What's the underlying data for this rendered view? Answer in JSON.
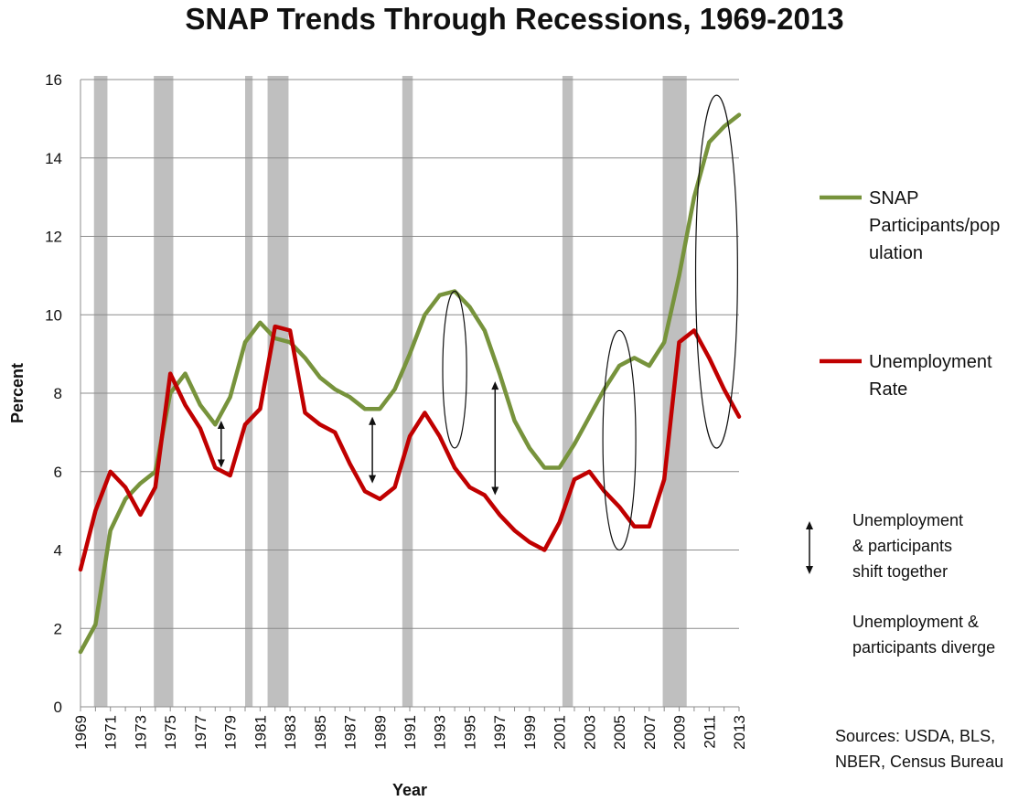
{
  "chart_data": {
    "type": "line",
    "title": "SNAP Trends Through Recessions, 1969-2013",
    "xlabel": "Year",
    "ylabel": "Percent",
    "ylim": [
      0,
      16
    ],
    "yticks": [
      0,
      2,
      4,
      6,
      8,
      10,
      12,
      14,
      16
    ],
    "xlim": [
      1969,
      2013
    ],
    "xtick_labels": [
      "1969",
      "1971",
      "1973",
      "1975",
      "1977",
      "1979",
      "1981",
      "1983",
      "1985",
      "1987",
      "1989",
      "1991",
      "1993",
      "1995",
      "1997",
      "1999",
      "2001",
      "2003",
      "2005",
      "2007",
      "2009",
      "2011",
      "2013"
    ],
    "grid": "horizontal",
    "legend_position": "right",
    "x": [
      1969,
      1970,
      1971,
      1972,
      1973,
      1974,
      1975,
      1976,
      1977,
      1978,
      1979,
      1980,
      1981,
      1982,
      1983,
      1984,
      1985,
      1986,
      1987,
      1988,
      1989,
      1990,
      1991,
      1992,
      1993,
      1994,
      1995,
      1996,
      1997,
      1998,
      1999,
      2000,
      2001,
      2002,
      2003,
      2004,
      2005,
      2006,
      2007,
      2008,
      2009,
      2010,
      2011,
      2012,
      2013
    ],
    "series": [
      {
        "name": "SNAP Participants/population",
        "color": "#77933c",
        "values": [
          1.4,
          2.1,
          4.5,
          5.3,
          5.7,
          6.0,
          8.0,
          8.5,
          7.7,
          7.2,
          7.9,
          9.3,
          9.8,
          9.4,
          9.3,
          8.9,
          8.4,
          8.1,
          7.9,
          7.6,
          7.6,
          8.1,
          9.0,
          10.0,
          10.5,
          10.6,
          10.2,
          9.6,
          8.5,
          7.3,
          6.6,
          6.1,
          6.1,
          6.7,
          7.4,
          8.1,
          8.7,
          8.9,
          8.7,
          9.3,
          11.0,
          13.0,
          14.4,
          14.8,
          15.1
        ]
      },
      {
        "name": "Unemployment Rate",
        "color": "#c00000",
        "values": [
          3.5,
          5.0,
          6.0,
          5.6,
          4.9,
          5.6,
          8.5,
          7.7,
          7.1,
          6.1,
          5.9,
          7.2,
          7.6,
          9.7,
          9.6,
          7.5,
          7.2,
          7.0,
          6.2,
          5.5,
          5.3,
          5.6,
          6.9,
          7.5,
          6.9,
          6.1,
          5.6,
          5.4,
          4.9,
          4.5,
          4.2,
          4.0,
          4.7,
          5.8,
          6.0,
          5.5,
          5.1,
          4.6,
          4.6,
          5.8,
          9.3,
          9.6,
          8.9,
          8.1,
          7.4
        ]
      }
    ],
    "recessions": [
      [
        1969.9,
        1970.8
      ],
      [
        1973.9,
        1975.2
      ],
      [
        1980.0,
        1980.5
      ],
      [
        1981.5,
        1982.9
      ],
      [
        1990.5,
        1991.2
      ],
      [
        2001.2,
        2001.9
      ],
      [
        2007.9,
        2009.5
      ]
    ],
    "double_arrows": [
      {
        "x": 1978.4,
        "y1": 7.3,
        "y2": 6.1
      },
      {
        "x": 1988.5,
        "y1": 7.4,
        "y2": 5.7
      },
      {
        "x": 1996.7,
        "y1": 8.3,
        "y2": 5.4
      }
    ],
    "ellipses": [
      {
        "cx": 1994.0,
        "cy": 8.6,
        "rx": 0.8,
        "ry": 2.0
      },
      {
        "cx": 2005.0,
        "cy": 6.8,
        "rx": 1.1,
        "ry": 2.8
      },
      {
        "cx": 2011.5,
        "cy": 11.1,
        "rx": 1.4,
        "ry": 4.5
      }
    ],
    "legend": {
      "snap_label_lines": [
        "SNAP",
        "Participants/pop",
        "ulation"
      ],
      "unemployment_label_lines": [
        "Unemployment",
        "Rate"
      ]
    },
    "annotations": {
      "shift_together_lines": [
        "Unemployment",
        "& participants",
        "shift together"
      ],
      "diverge_lines": [
        "Unemployment &",
        "participants diverge"
      ],
      "sources_lines": [
        "Sources: USDA, BLS,",
        "NBER, Census Bureau"
      ]
    }
  }
}
